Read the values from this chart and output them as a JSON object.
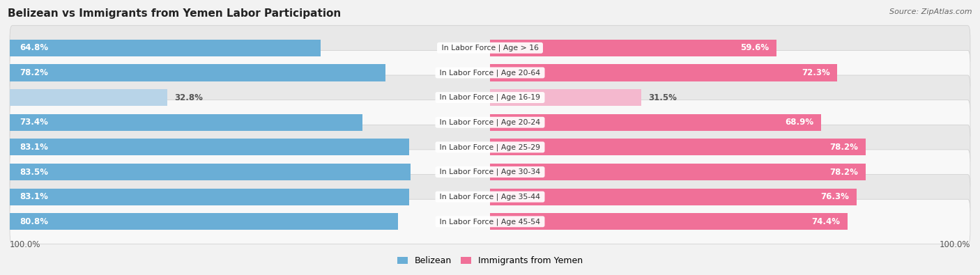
{
  "title": "Belizean vs Immigrants from Yemen Labor Participation",
  "source": "Source: ZipAtlas.com",
  "categories": [
    "In Labor Force | Age > 16",
    "In Labor Force | Age 20-64",
    "In Labor Force | Age 16-19",
    "In Labor Force | Age 20-24",
    "In Labor Force | Age 25-29",
    "In Labor Force | Age 30-34",
    "In Labor Force | Age 35-44",
    "In Labor Force | Age 45-54"
  ],
  "belizean_values": [
    64.8,
    78.2,
    32.8,
    73.4,
    83.1,
    83.5,
    83.1,
    80.8
  ],
  "yemen_values": [
    59.6,
    72.3,
    31.5,
    68.9,
    78.2,
    78.2,
    76.3,
    74.4
  ],
  "belizean_color": "#6aaed6",
  "belizean_color_light": "#b8d4e8",
  "yemen_color": "#f07098",
  "yemen_color_light": "#f4b8ce",
  "bar_height": 0.68,
  "background_color": "#f2f2f2",
  "row_bg_even": "#e8e8e8",
  "row_bg_odd": "#f8f8f8",
  "max_val": 100.0,
  "legend_belizean": "Belizean",
  "legend_yemen": "Immigrants from Yemen"
}
